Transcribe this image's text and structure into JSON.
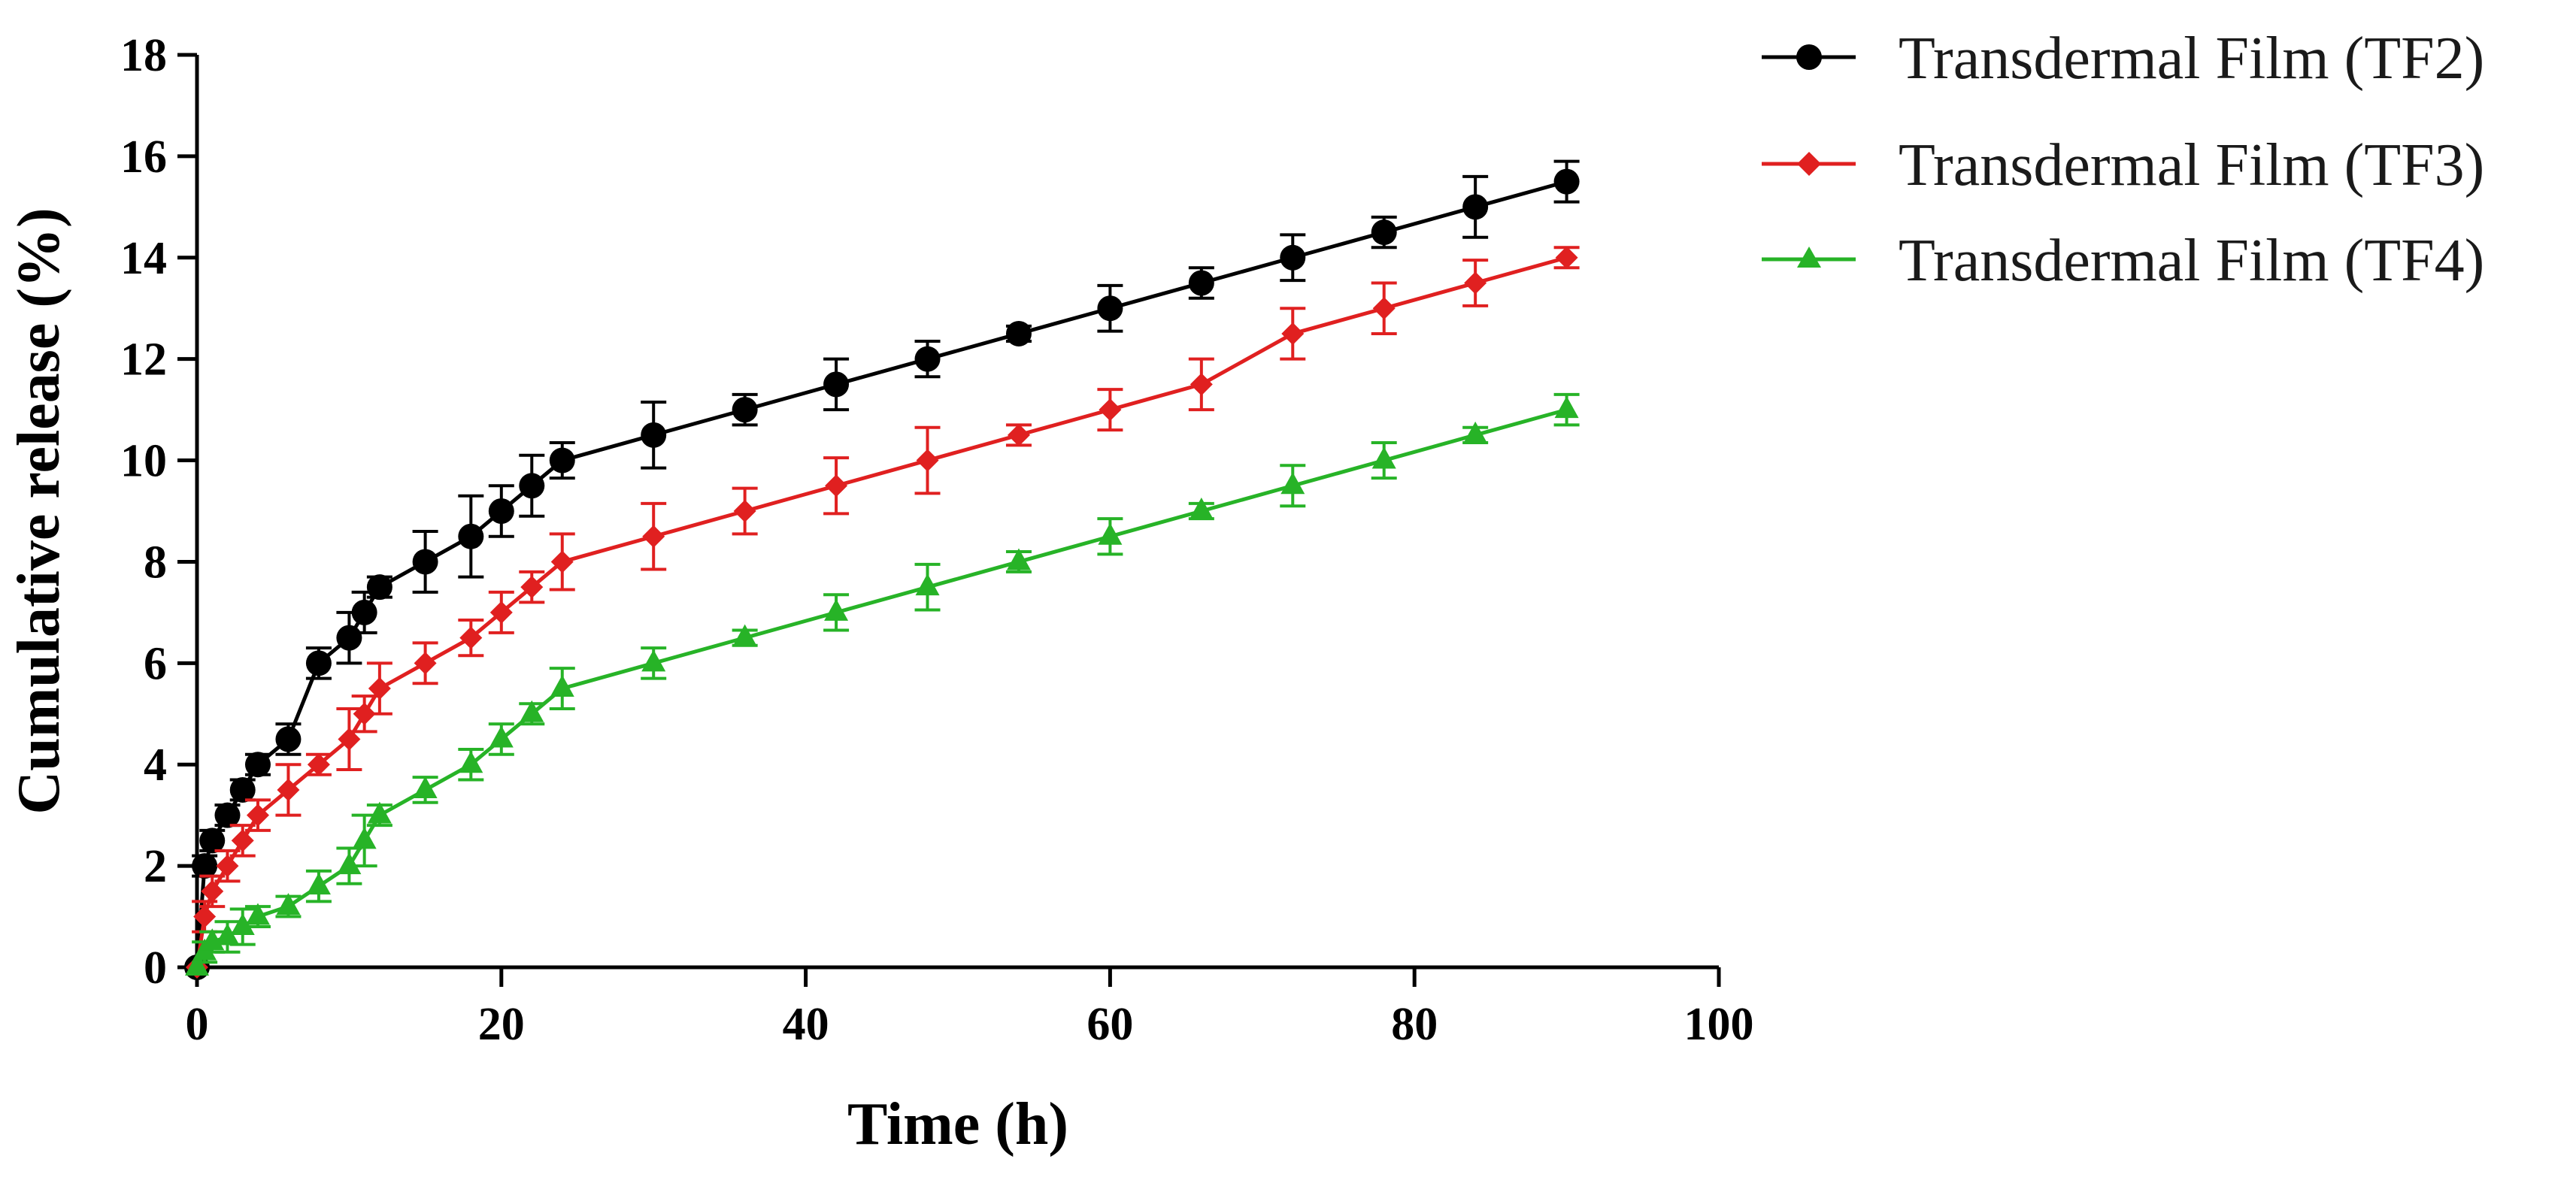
{
  "chart_data": {
    "type": "line",
    "xlabel": "Time (h)",
    "ylabel": "Cumulative release (%)",
    "xlim": [
      0,
      100
    ],
    "ylim": [
      0,
      18
    ],
    "xticks": [
      0,
      20,
      40,
      60,
      80,
      100
    ],
    "yticks": [
      0,
      2,
      4,
      6,
      8,
      10,
      12,
      14,
      16,
      18
    ],
    "grid": false,
    "legend_position": "top-right",
    "series": [
      {
        "name": "Transdermal Film (TF2)",
        "color": "#000000",
        "marker": "circle",
        "x": [
          0,
          0.5,
          1,
          2,
          3,
          4,
          6,
          8,
          10,
          11,
          12,
          15,
          18,
          20,
          22,
          24,
          30,
          36,
          42,
          48,
          54,
          60,
          66,
          72,
          78,
          84,
          90
        ],
        "y": [
          0,
          2,
          2.5,
          3,
          3.5,
          4,
          4.5,
          6,
          6.5,
          7,
          7.5,
          8,
          8.5,
          9,
          9.5,
          10,
          10.5,
          11,
          11.5,
          12,
          12.5,
          13,
          13.5,
          14,
          14.5,
          15,
          15.5
        ],
        "err": [
          0,
          0.2,
          0.2,
          0.2,
          0.2,
          0.2,
          0.3,
          0.3,
          0.5,
          0.4,
          0.2,
          0.6,
          0.8,
          0.5,
          0.6,
          0.35,
          0.65,
          0.3,
          0.5,
          0.35,
          0.15,
          0.45,
          0.3,
          0.45,
          0.3,
          0.6,
          0.4
        ]
      },
      {
        "name": "Transdermal Film (TF3)",
        "color": "#e02020",
        "marker": "diamond",
        "x": [
          0,
          0.5,
          1,
          2,
          3,
          4,
          6,
          8,
          10,
          11,
          12,
          15,
          18,
          20,
          22,
          24,
          30,
          36,
          42,
          48,
          54,
          60,
          66,
          72,
          78,
          84,
          90
        ],
        "y": [
          0,
          1,
          1.5,
          2,
          2.5,
          3,
          3.5,
          4,
          4.5,
          5,
          5.5,
          6,
          6.5,
          7,
          7.5,
          8,
          8.5,
          9,
          9.5,
          10,
          10.5,
          11,
          11.5,
          12.5,
          13,
          13.5,
          14
        ],
        "err": [
          0,
          0.3,
          0.3,
          0.3,
          0.3,
          0.3,
          0.5,
          0.2,
          0.6,
          0.35,
          0.5,
          0.4,
          0.35,
          0.4,
          0.3,
          0.55,
          0.65,
          0.45,
          0.55,
          0.65,
          0.2,
          0.4,
          0.5,
          0.5,
          0.5,
          0.45,
          0.2
        ]
      },
      {
        "name": "Transdermal Film (TF4)",
        "color": "#27b327",
        "marker": "triangle",
        "x": [
          0,
          0.5,
          1,
          2,
          3,
          4,
          6,
          8,
          10,
          11,
          12,
          15,
          18,
          20,
          22,
          24,
          30,
          36,
          42,
          48,
          54,
          60,
          66,
          72,
          78,
          84,
          90
        ],
        "y": [
          0,
          0.3,
          0.5,
          0.6,
          0.8,
          1,
          1.2,
          1.6,
          2,
          2.5,
          3,
          3.5,
          4,
          4.5,
          5,
          5.5,
          6,
          6.5,
          7,
          7.5,
          8,
          8.5,
          9,
          9.5,
          10,
          10.5,
          11
        ],
        "err": [
          0,
          0.2,
          0.2,
          0.3,
          0.35,
          0.2,
          0.2,
          0.3,
          0.35,
          0.5,
          0.2,
          0.25,
          0.3,
          0.3,
          0.2,
          0.4,
          0.3,
          0.15,
          0.35,
          0.45,
          0.2,
          0.35,
          0.15,
          0.4,
          0.35,
          0.15,
          0.3
        ]
      }
    ]
  }
}
